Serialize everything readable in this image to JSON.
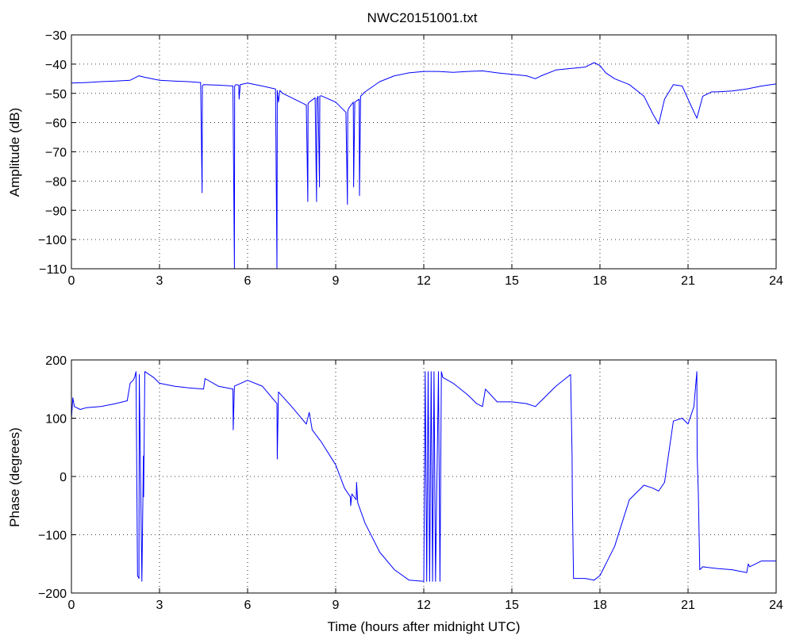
{
  "chart_data": [
    {
      "type": "line",
      "title": "NWC20151001.txt",
      "xlabel": "",
      "ylabel": "Amplitude (dB)",
      "xlim": [
        0,
        24
      ],
      "ylim": [
        -110,
        -30
      ],
      "xticks": [
        0,
        3,
        6,
        9,
        12,
        15,
        18,
        21,
        24
      ],
      "yticks": [
        -30,
        -40,
        -50,
        -60,
        -70,
        -80,
        -90,
        -100,
        -110
      ],
      "xtick_labels": [
        "0",
        "3",
        "6",
        "9",
        "12",
        "15",
        "18",
        "21",
        "24"
      ],
      "ytick_labels": [
        "−30",
        "−40",
        "−50",
        "−60",
        "−70",
        "−80",
        "−90",
        "−100",
        "−110"
      ],
      "grid": true,
      "series": [
        {
          "color": "#0000ff",
          "x": [
            0,
            0.5,
            1.0,
            1.5,
            2.0,
            2.3,
            2.5,
            3.0,
            3.5,
            4.0,
            4.4,
            4.45,
            4.46,
            4.5,
            5.0,
            5.5,
            5.55,
            5.56,
            5.6,
            5.7,
            5.71,
            5.75,
            6.0,
            6.5,
            6.95,
            7.0,
            7.01,
            7.05,
            7.1,
            7.2,
            7.5,
            7.8,
            8.0,
            8.05,
            8.06,
            8.1,
            8.3,
            8.35,
            8.36,
            8.4,
            8.45,
            8.46,
            8.5,
            9.0,
            9.2,
            9.35,
            9.4,
            9.41,
            9.45,
            9.6,
            9.61,
            9.65,
            9.8,
            9.81,
            9.85,
            10.0,
            10.5,
            11.0,
            11.5,
            12.0,
            12.5,
            13.0,
            13.5,
            14.0,
            14.5,
            15.0,
            15.5,
            15.8,
            16.0,
            16.5,
            17.0,
            17.5,
            17.8,
            18.0,
            18.2,
            18.5,
            19.0,
            19.5,
            19.8,
            20.0,
            20.2,
            20.5,
            20.8,
            21.0,
            21.3,
            21.5,
            21.8,
            22.0,
            22.5,
            23.0,
            23.5,
            24.0
          ],
          "y": [
            -46.5,
            -46.3,
            -46,
            -45.8,
            -45.5,
            -44,
            -44.5,
            -45.5,
            -45.8,
            -46,
            -46.3,
            -84,
            -47.5,
            -47,
            -47.2,
            -47.5,
            -110,
            -47.5,
            -47,
            -47.2,
            -52,
            -47,
            -46.5,
            -47.5,
            -48.5,
            -110,
            -49,
            -53,
            -49,
            -50,
            -51.5,
            -53,
            -54,
            -87,
            -53.5,
            -53,
            -51.5,
            -87,
            -52,
            -51,
            -82,
            -51,
            -50.8,
            -53,
            -55,
            -56.5,
            -88,
            -56,
            -55,
            -53,
            -82,
            -53,
            -52,
            -85,
            -51,
            -49.5,
            -46,
            -44,
            -43,
            -42.5,
            -42.5,
            -42.8,
            -42.5,
            -42.3,
            -43,
            -43.5,
            -44,
            -45,
            -44,
            -42,
            -41.5,
            -41,
            -39.5,
            -40.5,
            -43,
            -45,
            -47,
            -51,
            -57,
            -60.5,
            -52,
            -47,
            -47.5,
            -52,
            -58.5,
            -51,
            -49.5,
            -49.5,
            -49.2,
            -48.5,
            -47.5,
            -46.8
          ]
        }
      ]
    },
    {
      "type": "line",
      "title": "",
      "xlabel": "Time (hours after midnight UTC)",
      "ylabel": "Phase (degrees)",
      "xlim": [
        0,
        24
      ],
      "ylim": [
        -200,
        200
      ],
      "xticks": [
        0,
        3,
        6,
        9,
        12,
        15,
        18,
        21,
        24
      ],
      "yticks": [
        200,
        100,
        0,
        -100,
        -200
      ],
      "xtick_labels": [
        "0",
        "3",
        "6",
        "9",
        "12",
        "15",
        "18",
        "21",
        "24"
      ],
      "ytick_labels": [
        "200",
        "100",
        "0",
        "−100",
        "−200"
      ],
      "grid": true,
      "series": [
        {
          "color": "#0000ff",
          "x": [
            0,
            0.05,
            0.1,
            0.3,
            0.5,
            1.0,
            1.5,
            1.9,
            2.0,
            2.1,
            2.15,
            2.2,
            2.25,
            2.3,
            2.31,
            2.4,
            2.45,
            2.46,
            2.5,
            2.8,
            3.0,
            3.5,
            4.0,
            4.5,
            4.55,
            5.0,
            5.5,
            5.51,
            5.55,
            6.0,
            6.5,
            7.0,
            7.01,
            7.05,
            7.5,
            8.0,
            8.1,
            8.2,
            8.5,
            9.0,
            9.3,
            9.5,
            9.51,
            9.55,
            9.7,
            9.71,
            9.75,
            10.0,
            10.5,
            11.0,
            11.5,
            12.0,
            12.05,
            12.1,
            12.15,
            12.2,
            12.25,
            12.3,
            12.35,
            12.4,
            12.5,
            12.55,
            12.6,
            12.65,
            13.0,
            13.5,
            13.8,
            14.0,
            14.1,
            14.5,
            15.0,
            15.5,
            15.8,
            16.0,
            16.5,
            17.0,
            17.05,
            17.06,
            17.1,
            17.5,
            17.8,
            18.0,
            18.5,
            19.0,
            19.5,
            19.8,
            20.0,
            20.2,
            20.5,
            20.8,
            21.0,
            21.2,
            21.3,
            21.31,
            21.35,
            21.4,
            21.5,
            22.0,
            22.5,
            23.0,
            23.05,
            23.1,
            23.5,
            24.0
          ],
          "y": [
            100,
            135,
            120,
            115,
            118,
            120,
            125,
            130,
            160,
            165,
            170,
            180,
            -170,
            -175,
            175,
            -180,
            35,
            -35,
            180,
            170,
            160,
            155,
            152,
            150,
            168,
            155,
            150,
            80,
            155,
            165,
            155,
            125,
            30,
            145,
            120,
            90,
            110,
            80,
            60,
            20,
            -20,
            -35,
            -50,
            -30,
            -40,
            -10,
            -45,
            -80,
            -130,
            -160,
            -178,
            -180,
            180,
            -180,
            180,
            -180,
            180,
            -180,
            180,
            -180,
            180,
            -180,
            180,
            170,
            160,
            140,
            125,
            120,
            150,
            128,
            128,
            125,
            120,
            130,
            155,
            175,
            35,
            -35,
            -175,
            -175,
            -178,
            -170,
            -120,
            -40,
            -15,
            -20,
            -25,
            -10,
            95,
            100,
            90,
            120,
            180,
            35,
            -30,
            -160,
            -155,
            -158,
            -160,
            -165,
            -150,
            -155,
            -145,
            -145
          ]
        }
      ]
    }
  ]
}
